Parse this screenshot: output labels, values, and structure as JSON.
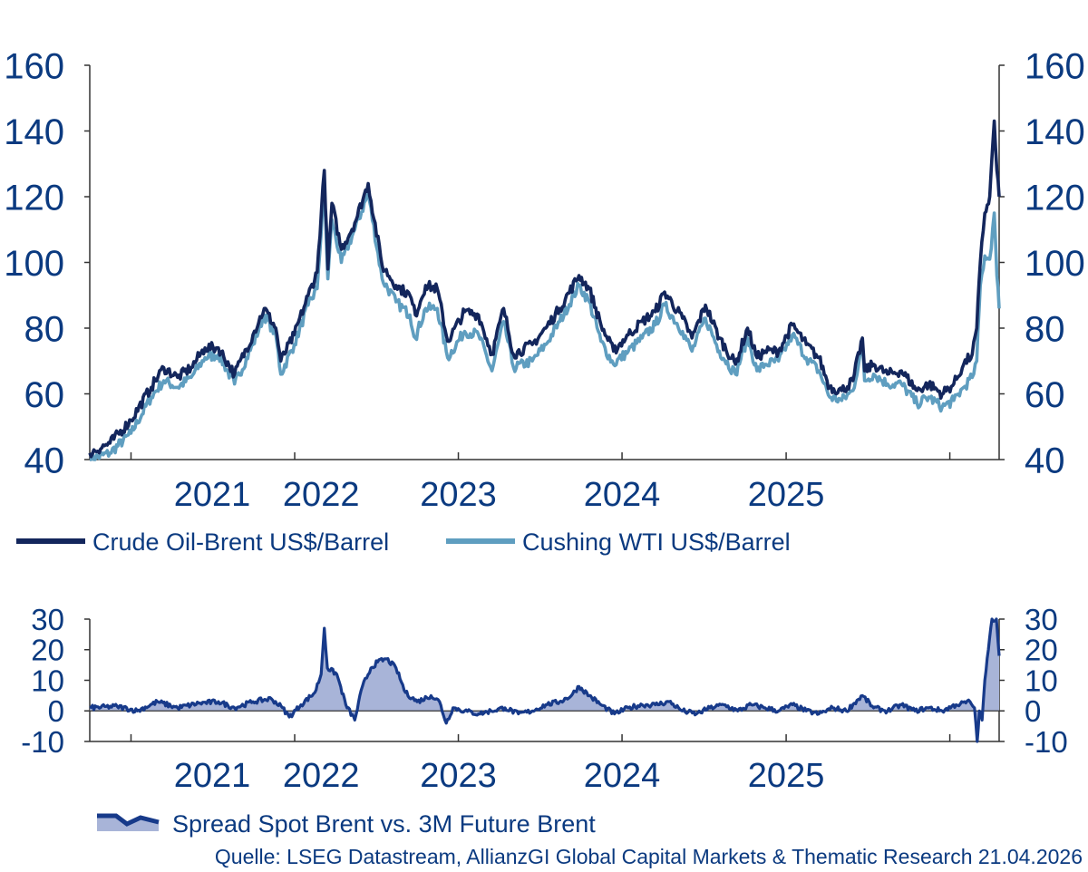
{
  "source_note": "Quelle: LSEG Datastream, AllianzGI Global Capital Markets & Thematic Research 21.04.2026",
  "colors": {
    "text": "#0b3a80",
    "axis": "#333333",
    "brent": "#13265c",
    "wti": "#5f9ec0",
    "spread_line": "#173a8a",
    "spread_fill": "#a8b4d8"
  },
  "chart_data": [
    {
      "type": "line",
      "title": "",
      "x_domain": [
        "2020-10-01",
        "2026-04-21"
      ],
      "x_tick_labels": [
        "2021",
        "2022",
        "2023",
        "2024",
        "2025"
      ],
      "x_tick_label_dates": [
        "2021-07-01",
        "2022-03-01",
        "2023-01-01",
        "2024-01-01",
        "2025-01-01"
      ],
      "y_left": {
        "ylim": [
          40,
          160
        ],
        "ticks": [
          160,
          140,
          120,
          100,
          80,
          60,
          40
        ]
      },
      "y_right": {
        "ylim": [
          40,
          160
        ],
        "ticks": [
          160,
          140,
          120,
          100,
          80,
          60,
          40
        ]
      },
      "grid": false,
      "legend_position": "bottom",
      "series": [
        {
          "name": "Crude Oil-Brent US$/Barrel",
          "color": "#13265c",
          "points": [
            [
              "2020-10-01",
              42
            ],
            [
              "2020-11-15",
              45
            ],
            [
              "2021-01-01",
              52
            ],
            [
              "2021-02-15",
              62
            ],
            [
              "2021-03-15",
              68
            ],
            [
              "2021-04-15",
              65
            ],
            [
              "2021-05-15",
              68
            ],
            [
              "2021-06-15",
              74
            ],
            [
              "2021-07-15",
              74
            ],
            [
              "2021-08-20",
              66
            ],
            [
              "2021-09-30",
              78
            ],
            [
              "2021-10-25",
              86
            ],
            [
              "2021-11-20",
              80
            ],
            [
              "2021-12-01",
              70
            ],
            [
              "2021-12-31",
              78
            ],
            [
              "2022-01-31",
              90
            ],
            [
              "2022-02-20",
              97
            ],
            [
              "2022-03-08",
              128
            ],
            [
              "2022-03-16",
              98
            ],
            [
              "2022-03-25",
              118
            ],
            [
              "2022-04-15",
              104
            ],
            [
              "2022-05-15",
              112
            ],
            [
              "2022-06-14",
              124
            ],
            [
              "2022-07-15",
              99
            ],
            [
              "2022-08-15",
              93
            ],
            [
              "2022-09-15",
              90
            ],
            [
              "2022-09-27",
              84
            ],
            [
              "2022-10-20",
              93
            ],
            [
              "2022-11-15",
              92
            ],
            [
              "2022-12-08",
              76
            ],
            [
              "2023-01-15",
              85
            ],
            [
              "2023-02-15",
              84
            ],
            [
              "2023-03-17",
              72
            ],
            [
              "2023-04-12",
              86
            ],
            [
              "2023-05-04",
              72
            ],
            [
              "2023-06-15",
              75
            ],
            [
              "2023-07-15",
              80
            ],
            [
              "2023-08-15",
              86
            ],
            [
              "2023-09-27",
              96
            ],
            [
              "2023-10-20",
              92
            ],
            [
              "2023-11-15",
              81
            ],
            [
              "2023-12-13",
              73
            ],
            [
              "2024-01-15",
              78
            ],
            [
              "2024-02-15",
              82
            ],
            [
              "2024-03-15",
              85
            ],
            [
              "2024-04-05",
              91
            ],
            [
              "2024-05-15",
              83
            ],
            [
              "2024-06-05",
              77
            ],
            [
              "2024-07-05",
              87
            ],
            [
              "2024-08-05",
              77
            ],
            [
              "2024-09-10",
              69
            ],
            [
              "2024-10-07",
              80
            ],
            [
              "2024-10-28",
              71
            ],
            [
              "2024-11-15",
              73
            ],
            [
              "2024-12-15",
              73
            ],
            [
              "2025-01-15",
              81
            ],
            [
              "2025-02-15",
              75
            ],
            [
              "2025-03-15",
              71
            ],
            [
              "2025-04-08",
              62
            ],
            [
              "2025-05-05",
              61
            ],
            [
              "2025-05-30",
              64
            ],
            [
              "2025-06-20",
              77
            ],
            [
              "2025-06-25",
              67
            ],
            [
              "2025-07-15",
              69
            ],
            [
              "2025-08-15",
              66
            ],
            [
              "2025-09-15",
              67
            ],
            [
              "2025-10-20",
              61
            ],
            [
              "2025-11-15",
              63
            ],
            [
              "2025-12-15",
              60
            ],
            [
              "2026-01-10",
              63
            ],
            [
              "2026-02-01",
              69
            ],
            [
              "2026-02-20",
              72
            ],
            [
              "2026-03-02",
              80
            ],
            [
              "2026-03-10",
              100
            ],
            [
              "2026-03-20",
              115
            ],
            [
              "2026-03-31",
              120
            ],
            [
              "2026-04-10",
              143
            ],
            [
              "2026-04-16",
              128
            ],
            [
              "2026-04-21",
              120
            ]
          ]
        },
        {
          "name": "Cushing WTI US$/Barrel",
          "color": "#5f9ec0",
          "points": [
            [
              "2020-10-01",
              40
            ],
            [
              "2020-11-15",
              42
            ],
            [
              "2021-01-01",
              48
            ],
            [
              "2021-02-15",
              59
            ],
            [
              "2021-03-15",
              64
            ],
            [
              "2021-04-15",
              62
            ],
            [
              "2021-05-15",
              65
            ],
            [
              "2021-06-15",
              71
            ],
            [
              "2021-07-15",
              72
            ],
            [
              "2021-08-20",
              63
            ],
            [
              "2021-09-30",
              75
            ],
            [
              "2021-10-25",
              84
            ],
            [
              "2021-11-20",
              78
            ],
            [
              "2021-12-01",
              66
            ],
            [
              "2021-12-31",
              75
            ],
            [
              "2022-01-31",
              87
            ],
            [
              "2022-02-20",
              92
            ],
            [
              "2022-03-08",
              123
            ],
            [
              "2022-03-16",
              95
            ],
            [
              "2022-03-25",
              113
            ],
            [
              "2022-04-15",
              100
            ],
            [
              "2022-05-15",
              110
            ],
            [
              "2022-06-14",
              121
            ],
            [
              "2022-07-15",
              95
            ],
            [
              "2022-08-15",
              88
            ],
            [
              "2022-09-15",
              84
            ],
            [
              "2022-09-27",
              77
            ],
            [
              "2022-10-20",
              86
            ],
            [
              "2022-11-15",
              86
            ],
            [
              "2022-12-08",
              71
            ],
            [
              "2023-01-15",
              79
            ],
            [
              "2023-02-15",
              78
            ],
            [
              "2023-03-17",
              67
            ],
            [
              "2023-04-12",
              82
            ],
            [
              "2023-05-04",
              68
            ],
            [
              "2023-06-15",
              70
            ],
            [
              "2023-07-15",
              75
            ],
            [
              "2023-08-15",
              82
            ],
            [
              "2023-09-27",
              93
            ],
            [
              "2023-10-20",
              88
            ],
            [
              "2023-11-15",
              76
            ],
            [
              "2023-12-13",
              69
            ],
            [
              "2024-01-15",
              73
            ],
            [
              "2024-02-15",
              77
            ],
            [
              "2024-03-15",
              81
            ],
            [
              "2024-04-05",
              87
            ],
            [
              "2024-05-15",
              79
            ],
            [
              "2024-06-05",
              73
            ],
            [
              "2024-07-05",
              83
            ],
            [
              "2024-08-05",
              73
            ],
            [
              "2024-09-10",
              66
            ],
            [
              "2024-10-07",
              77
            ],
            [
              "2024-10-28",
              67
            ],
            [
              "2024-11-15",
              69
            ],
            [
              "2024-12-15",
              70
            ],
            [
              "2025-01-15",
              78
            ],
            [
              "2025-02-15",
              71
            ],
            [
              "2025-03-15",
              67
            ],
            [
              "2025-04-08",
              59
            ],
            [
              "2025-05-05",
              58
            ],
            [
              "2025-05-30",
              61
            ],
            [
              "2025-06-20",
              75
            ],
            [
              "2025-06-25",
              64
            ],
            [
              "2025-07-15",
              66
            ],
            [
              "2025-08-15",
              63
            ],
            [
              "2025-09-15",
              63
            ],
            [
              "2025-10-20",
              57
            ],
            [
              "2025-11-15",
              59
            ],
            [
              "2025-12-15",
              56
            ],
            [
              "2026-01-10",
              58
            ],
            [
              "2026-02-01",
              62
            ],
            [
              "2026-02-20",
              65
            ],
            [
              "2026-03-02",
              70
            ],
            [
              "2026-03-10",
              93
            ],
            [
              "2026-03-20",
              102
            ],
            [
              "2026-03-31",
              101
            ],
            [
              "2026-04-10",
              115
            ],
            [
              "2026-04-16",
              96
            ],
            [
              "2026-04-21",
              86
            ]
          ]
        }
      ]
    },
    {
      "type": "area",
      "title": "",
      "x_domain": [
        "2020-10-01",
        "2026-04-21"
      ],
      "x_tick_labels": [
        "2021",
        "2022",
        "2023",
        "2024",
        "2025"
      ],
      "x_tick_label_dates": [
        "2021-07-01",
        "2022-03-01",
        "2023-01-01",
        "2024-01-01",
        "2025-01-01"
      ],
      "y_left": {
        "ylim": [
          -10,
          30
        ],
        "ticks": [
          30,
          20,
          10,
          0,
          -10
        ]
      },
      "y_right": {
        "ylim": [
          -10,
          30
        ],
        "ticks": [
          30,
          20,
          10,
          0,
          -10
        ]
      },
      "grid": false,
      "legend_position": "bottom",
      "series": [
        {
          "name": "Spread Spot Brent vs. 3M Future Brent",
          "color": "#173a8a",
          "fill": "#a8b4d8",
          "points": [
            [
              "2020-10-01",
              1
            ],
            [
              "2020-12-01",
              1.5
            ],
            [
              "2021-01-15",
              0
            ],
            [
              "2021-03-01",
              3
            ],
            [
              "2021-04-15",
              1
            ],
            [
              "2021-06-01",
              2.5
            ],
            [
              "2021-07-15",
              3
            ],
            [
              "2021-08-20",
              1
            ],
            [
              "2021-09-30",
              3
            ],
            [
              "2021-11-10",
              4
            ],
            [
              "2021-12-05",
              1
            ],
            [
              "2021-12-20",
              -2
            ],
            [
              "2022-01-15",
              2
            ],
            [
              "2022-02-15",
              6
            ],
            [
              "2022-03-01",
              12
            ],
            [
              "2022-03-08",
              27
            ],
            [
              "2022-03-15",
              14
            ],
            [
              "2022-04-05",
              12
            ],
            [
              "2022-04-25",
              2
            ],
            [
              "2022-05-15",
              -3
            ],
            [
              "2022-06-01",
              8
            ],
            [
              "2022-06-20",
              14
            ],
            [
              "2022-07-05",
              16
            ],
            [
              "2022-07-25",
              17
            ],
            [
              "2022-08-15",
              14
            ],
            [
              "2022-09-05",
              6
            ],
            [
              "2022-10-01",
              3
            ],
            [
              "2022-11-01",
              5
            ],
            [
              "2022-11-20",
              3
            ],
            [
              "2022-12-05",
              -4
            ],
            [
              "2022-12-20",
              1
            ],
            [
              "2023-01-15",
              0
            ],
            [
              "2023-02-15",
              -1
            ],
            [
              "2023-03-15",
              0
            ],
            [
              "2023-04-15",
              1
            ],
            [
              "2023-05-15",
              -1
            ],
            [
              "2023-06-15",
              0
            ],
            [
              "2023-07-15",
              2
            ],
            [
              "2023-08-15",
              3
            ],
            [
              "2023-09-10",
              5
            ],
            [
              "2023-09-27",
              8
            ],
            [
              "2023-10-20",
              5
            ],
            [
              "2023-11-15",
              2
            ],
            [
              "2023-12-15",
              -1
            ],
            [
              "2024-01-15",
              1
            ],
            [
              "2024-02-15",
              2
            ],
            [
              "2024-03-15",
              2
            ],
            [
              "2024-04-15",
              3
            ],
            [
              "2024-05-15",
              0
            ],
            [
              "2024-06-15",
              -1
            ],
            [
              "2024-07-15",
              1
            ],
            [
              "2024-08-15",
              2
            ],
            [
              "2024-09-15",
              0
            ],
            [
              "2024-10-15",
              2
            ],
            [
              "2024-11-15",
              1
            ],
            [
              "2024-12-15",
              0
            ],
            [
              "2025-01-15",
              2
            ],
            [
              "2025-02-15",
              0
            ],
            [
              "2025-03-15",
              -1
            ],
            [
              "2025-04-15",
              1
            ],
            [
              "2025-05-15",
              0
            ],
            [
              "2025-06-20",
              5
            ],
            [
              "2025-07-15",
              1
            ],
            [
              "2025-08-15",
              0
            ],
            [
              "2025-09-15",
              2
            ],
            [
              "2025-10-15",
              0
            ],
            [
              "2025-11-15",
              1
            ],
            [
              "2025-12-15",
              0
            ],
            [
              "2026-01-15",
              2
            ],
            [
              "2026-02-15",
              3
            ],
            [
              "2026-02-25",
              1
            ],
            [
              "2026-03-03",
              -10
            ],
            [
              "2026-03-08",
              0
            ],
            [
              "2026-03-14",
              -3
            ],
            [
              "2026-03-20",
              10
            ],
            [
              "2026-03-28",
              20
            ],
            [
              "2026-04-05",
              30
            ],
            [
              "2026-04-15",
              30
            ],
            [
              "2026-04-21",
              18
            ]
          ]
        }
      ]
    }
  ]
}
